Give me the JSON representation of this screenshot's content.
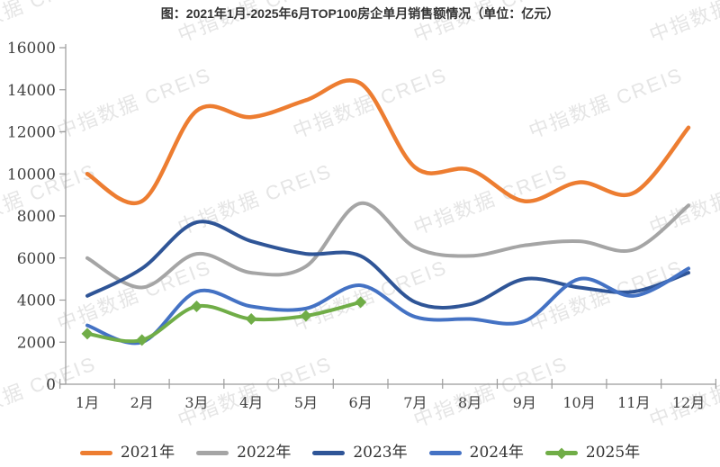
{
  "watermark": {
    "text": "中指数据 CREIS"
  },
  "chart_data": {
    "type": "line",
    "title": "图：2021年1月-2025年6月TOP100房企单月销售额情况（单位：亿元）",
    "unit": "亿元",
    "categories": [
      "1月",
      "2月",
      "3月",
      "4月",
      "5月",
      "6月",
      "7月",
      "8月",
      "9月",
      "10月",
      "11月",
      "12月"
    ],
    "y_axis": {
      "min": 0,
      "max": 16000,
      "step": 2000,
      "tick_labels": [
        "0",
        "2000",
        "4000",
        "6000",
        "8000",
        "10000",
        "12000",
        "14000",
        "16000"
      ]
    },
    "grid": false,
    "legend_position": "bottom",
    "series": [
      {
        "name": "2021年",
        "color": "#ED7D31",
        "marker": "none",
        "values": [
          10000,
          8700,
          13000,
          12700,
          13500,
          14300,
          10300,
          10200,
          8700,
          9600,
          9100,
          12200
        ]
      },
      {
        "name": "2022年",
        "color": "#A5A5A5",
        "marker": "none",
        "values": [
          6000,
          4600,
          6200,
          5300,
          5600,
          8600,
          6500,
          6100,
          6600,
          6800,
          6400,
          8500
        ]
      },
      {
        "name": "2023年",
        "color": "#2F5597",
        "marker": "none",
        "values": [
          4200,
          5500,
          7700,
          6800,
          6200,
          6100,
          3900,
          3800,
          5000,
          4600,
          4400,
          5300
        ]
      },
      {
        "name": "2024年",
        "color": "#4472C4",
        "marker": "none",
        "values": [
          2800,
          2000,
          4400,
          3700,
          3600,
          4700,
          3200,
          3100,
          3000,
          5000,
          4200,
          5500
        ]
      },
      {
        "name": "2025年",
        "color": "#70AD47",
        "marker": "diamond",
        "values": [
          2400,
          2100,
          3700,
          3100,
          3250,
          3900
        ]
      }
    ]
  }
}
